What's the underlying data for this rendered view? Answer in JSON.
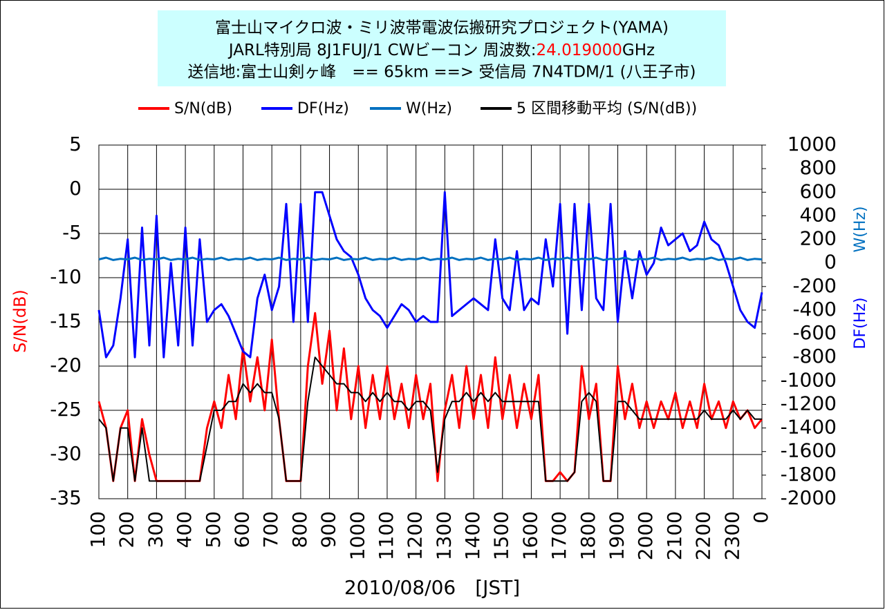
{
  "chart_data": {
    "type": "line",
    "title_lines": [
      "富士山マイクロ波・ミリ波帯電波伝搬研究プロジェクト(YAMA)",
      "送信地:富士山剣ヶ峰　== 65km ==> 受信局 7N4TDM/1 (八王子市)"
    ],
    "subtitle_parts": [
      "JARL特別局 8J1FUJ/1 CWビーコン 周波数:",
      "24.019000",
      "GHz"
    ],
    "highlight_color": "#ff0000",
    "xlabel": "2010/08/06　[JST]",
    "ylabel": "S/N(dB)",
    "y2labels": [
      "W(Hz)",
      "DF(Hz)"
    ],
    "xlim": [
      1,
      24
    ],
    "xticks": [
      {
        "value": 1,
        "label": "100"
      },
      {
        "value": 2,
        "label": "200"
      },
      {
        "value": 3,
        "label": "300"
      },
      {
        "value": 4,
        "label": "400"
      },
      {
        "value": 5,
        "label": "500"
      },
      {
        "value": 6,
        "label": "600"
      },
      {
        "value": 7,
        "label": "700"
      },
      {
        "value": 8,
        "label": "800"
      },
      {
        "value": 9,
        "label": "900"
      },
      {
        "value": 10,
        "label": "1000"
      },
      {
        "value": 11,
        "label": "1100"
      },
      {
        "value": 12,
        "label": "1200"
      },
      {
        "value": 13,
        "label": "1300"
      },
      {
        "value": 14,
        "label": "1400"
      },
      {
        "value": 15,
        "label": "1500"
      },
      {
        "value": 16,
        "label": "1600"
      },
      {
        "value": 17,
        "label": "1700"
      },
      {
        "value": 18,
        "label": "1800"
      },
      {
        "value": 19,
        "label": "1900"
      },
      {
        "value": 20,
        "label": "2000"
      },
      {
        "value": 21,
        "label": "2100"
      },
      {
        "value": 22,
        "label": "2200"
      },
      {
        "value": 23,
        "label": "2300"
      },
      {
        "value": 24,
        "label": "0"
      }
    ],
    "ylim": [
      -35,
      5
    ],
    "yticks": [
      -35,
      -30,
      -25,
      -20,
      -15,
      -10,
      -5,
      0,
      5
    ],
    "y2lim": [
      -2000,
      1000
    ],
    "y2ticks": [
      -2000,
      -1800,
      -1600,
      -1400,
      -1200,
      -1000,
      -800,
      -600,
      -400,
      -200,
      0,
      200,
      400,
      600,
      800,
      1000
    ],
    "grid": true,
    "x": [
      1,
      1.25,
      1.5,
      1.75,
      2,
      2.25,
      2.5,
      2.75,
      3,
      3.25,
      3.5,
      3.75,
      4,
      4.25,
      4.5,
      4.75,
      5,
      5.25,
      5.5,
      5.75,
      6,
      6.25,
      6.5,
      6.75,
      7,
      7.25,
      7.5,
      7.75,
      8,
      8.25,
      8.5,
      8.75,
      9,
      9.25,
      9.5,
      9.75,
      10,
      10.25,
      10.5,
      10.75,
      11,
      11.25,
      11.5,
      11.75,
      12,
      12.25,
      12.5,
      12.75,
      13,
      13.25,
      13.5,
      13.75,
      14,
      14.25,
      14.5,
      14.75,
      15,
      15.25,
      15.5,
      15.75,
      16,
      16.25,
      16.5,
      16.75,
      17,
      17.25,
      17.5,
      17.75,
      18,
      18.25,
      18.5,
      18.75,
      19,
      19.25,
      19.5,
      19.75,
      20,
      20.25,
      20.5,
      20.75,
      21,
      21.25,
      21.5,
      21.75,
      22,
      22.25,
      22.5,
      22.75,
      23,
      23.25,
      23.5,
      23.75,
      24
    ],
    "series": [
      {
        "name": "S/N(dB)",
        "color": "#ff0000",
        "values": [
          -24,
          -27,
          -33,
          -27,
          -25,
          -33,
          -26,
          -30,
          -33,
          -33,
          -33,
          -33,
          -33,
          -33,
          -33,
          -27,
          -24,
          -27,
          -21,
          -26,
          -18,
          -24,
          -19,
          -25,
          -17,
          -26,
          -33,
          -33,
          -33,
          -20,
          -14,
          -22,
          -16,
          -25,
          -18,
          -26,
          -20,
          -27,
          -21,
          -26,
          -20,
          -26,
          -22,
          -27,
          -21,
          -26,
          -22,
          -33,
          -25,
          -21,
          -27,
          -20,
          -26,
          -21,
          -27,
          -19,
          -26,
          -21,
          -27,
          -22,
          -26,
          -21,
          -33,
          -33,
          -32,
          -33,
          -32,
          -20,
          -26,
          -22,
          -33,
          -33,
          -20,
          -26,
          -22,
          -27,
          -24,
          -27,
          -24,
          -26,
          -23,
          -27,
          -24,
          -27,
          -22,
          -26,
          -24,
          -27,
          -24,
          -26,
          -25,
          -27,
          -26
        ]
      },
      {
        "name": "DF(Hz)",
        "color": "#0000ff",
        "axis": "y2",
        "values": [
          -400,
          -800,
          -700,
          -300,
          200,
          -800,
          300,
          -700,
          400,
          -800,
          0,
          -700,
          300,
          -700,
          200,
          -500,
          -400,
          -350,
          -450,
          -600,
          -750,
          -800,
          -300,
          -100,
          -400,
          -200,
          500,
          -500,
          500,
          -500,
          600,
          600,
          400,
          200,
          100,
          50,
          -100,
          -300,
          -400,
          -450,
          -550,
          -450,
          -350,
          -400,
          -500,
          -450,
          -500,
          -500,
          600,
          -450,
          -400,
          -350,
          -300,
          -350,
          -400,
          200,
          -300,
          -400,
          100,
          -400,
          -300,
          -350,
          200,
          -200,
          500,
          -600,
          500,
          -400,
          500,
          -300,
          -400,
          500,
          -500,
          100,
          -300,
          100,
          -100,
          0,
          300,
          150,
          200,
          250,
          100,
          150,
          350,
          200,
          150,
          0,
          -200,
          -400,
          -500,
          -550,
          -250
        ]
      },
      {
        "name": "W(Hz)",
        "color": "#0070c0",
        "axis": "y2",
        "values": [
          30,
          45,
          25,
          35,
          30,
          45,
          25,
          35,
          30,
          45,
          25,
          35,
          30,
          45,
          25,
          35,
          30,
          45,
          25,
          35,
          30,
          45,
          25,
          35,
          30,
          45,
          25,
          35,
          30,
          45,
          25,
          35,
          30,
          45,
          25,
          35,
          30,
          45,
          25,
          35,
          30,
          45,
          25,
          35,
          30,
          45,
          25,
          35,
          30,
          45,
          25,
          35,
          30,
          45,
          25,
          35,
          30,
          45,
          25,
          35,
          30,
          45,
          25,
          35,
          30,
          45,
          25,
          35,
          30,
          45,
          25,
          35,
          30,
          45,
          25,
          35,
          30,
          45,
          25,
          35,
          30,
          45,
          25,
          35,
          30,
          45,
          25,
          35,
          30,
          45,
          25,
          35,
          30
        ]
      },
      {
        "name": "5 区間移動平均 (S/N(dB))",
        "color": "#000000",
        "values": [
          -26,
          -27,
          -33,
          -27,
          -27,
          -33,
          -27,
          -33,
          -33,
          -33,
          -33,
          -33,
          -33,
          -33,
          -33,
          -29,
          -25,
          -25,
          -24,
          -24,
          -22,
          -23,
          -22,
          -23,
          -23,
          -26,
          -33,
          -33,
          -33,
          -24,
          -19,
          -20,
          -21,
          -22,
          -22,
          -23,
          -23,
          -24,
          -23,
          -24,
          -23,
          -24,
          -24,
          -25,
          -24,
          -24,
          -25,
          -32,
          -26,
          -24,
          -24,
          -23,
          -24,
          -23,
          -24,
          -23,
          -24,
          -24,
          -24,
          -24,
          -24,
          -24,
          -33,
          -33,
          -33,
          -33,
          -32,
          -24,
          -23,
          -24,
          -33,
          -33,
          -24,
          -24,
          -25,
          -26,
          -26,
          -26,
          -26,
          -26,
          -26,
          -26,
          -26,
          -26,
          -25,
          -26,
          -26,
          -26,
          -25,
          -26,
          -25,
          -26,
          -26
        ]
      }
    ]
  }
}
